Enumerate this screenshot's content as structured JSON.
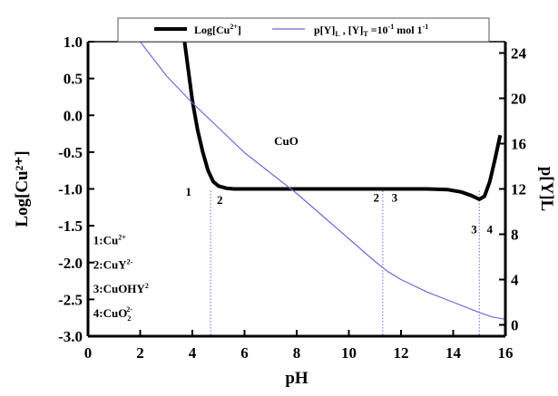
{
  "chart_data": {
    "type": "line",
    "xlabel": "pH",
    "ylabel_left": "Log[Cu²⁺]",
    "ylabel_right": "p[Y]L",
    "xlim": [
      0,
      16
    ],
    "ylim_left": [
      -3.0,
      1.0
    ],
    "ylim_right": [
      -1,
      25
    ],
    "x_ticks": [
      0,
      2,
      4,
      6,
      8,
      10,
      12,
      14,
      16
    ],
    "y_left_ticks": [
      1.0,
      0.5,
      0.0,
      -0.5,
      -1.0,
      -1.5,
      -2.0,
      -2.5,
      -3.0
    ],
    "y_right_ticks": [
      0,
      4,
      8,
      12,
      16,
      20,
      24
    ],
    "grid": false,
    "legend_position": "top",
    "legend": {
      "series1_base": "Log[Cu",
      "series1_sup": "2+",
      "series1_tail": "]",
      "series2_p": "p[Y]",
      "series2_psub": "L",
      "series2_sep": " , [Y]",
      "series2_tsub": "T",
      "series2_eq": " =10",
      "series2_exp": "-1",
      "series2_unit": " mol 1",
      "series2_unitexp": "-1"
    },
    "series": [
      {
        "axis": "left",
        "color": "#000000",
        "x": [
          3.7,
          3.85,
          4.0,
          4.2,
          4.4,
          4.6,
          4.8,
          5.0,
          5.3,
          5.6,
          6.0,
          7.0,
          8.0,
          9.0,
          10.0,
          11.0,
          12.0,
          13.0,
          13.8,
          14.3,
          14.7,
          15.0,
          15.2,
          15.4,
          15.6,
          15.8
        ],
        "values": [
          1.0,
          0.6,
          0.2,
          -0.2,
          -0.5,
          -0.75,
          -0.9,
          -0.96,
          -0.99,
          -1.0,
          -1.0,
          -1.0,
          -1.0,
          -1.0,
          -1.0,
          -1.0,
          -1.0,
          -1.0,
          -1.01,
          -1.04,
          -1.09,
          -1.14,
          -1.1,
          -0.9,
          -0.6,
          -0.27
        ]
      },
      {
        "axis": "right",
        "color": "#6b6bd6",
        "x": [
          2.0,
          3.0,
          4.0,
          5.0,
          6.0,
          7.0,
          8.0,
          9.0,
          10.0,
          11.0,
          11.5,
          12.0,
          13.0,
          14.0,
          15.0,
          15.5,
          16.0
        ],
        "values": [
          25.0,
          22.0,
          19.6,
          17.4,
          15.2,
          13.4,
          11.6,
          9.6,
          7.6,
          5.6,
          4.7,
          4.0,
          2.9,
          2.0,
          1.1,
          0.7,
          0.5
        ]
      }
    ],
    "vlines": [
      4.7,
      11.3,
      15.0
    ],
    "annotations": [
      {
        "text": "1",
        "x": 3.85,
        "y": -1.09
      },
      {
        "text": "2",
        "x": 5.05,
        "y": -1.2
      },
      {
        "text": "2",
        "x": 11.05,
        "y": -1.17
      },
      {
        "text": "3",
        "x": 11.75,
        "y": -1.17
      },
      {
        "text": "3",
        "x": 14.8,
        "y": -1.6
      },
      {
        "text": "4",
        "x": 15.4,
        "y": -1.6
      },
      {
        "text": "CuO",
        "x": 7.6,
        "y": -0.4
      }
    ],
    "species": [
      {
        "label": "1:Cu",
        "sup": "2+",
        "sub": "",
        "y": -1.75
      },
      {
        "label": "2:CuY",
        "sup": "2-",
        "sub": "",
        "y": -2.08
      },
      {
        "label": "3:CuOHY",
        "sup": "2",
        "sub": "",
        "y": -2.41
      },
      {
        "label": "4:CuO",
        "sup": "2-",
        "sub": "2",
        "y": -2.74
      }
    ]
  }
}
